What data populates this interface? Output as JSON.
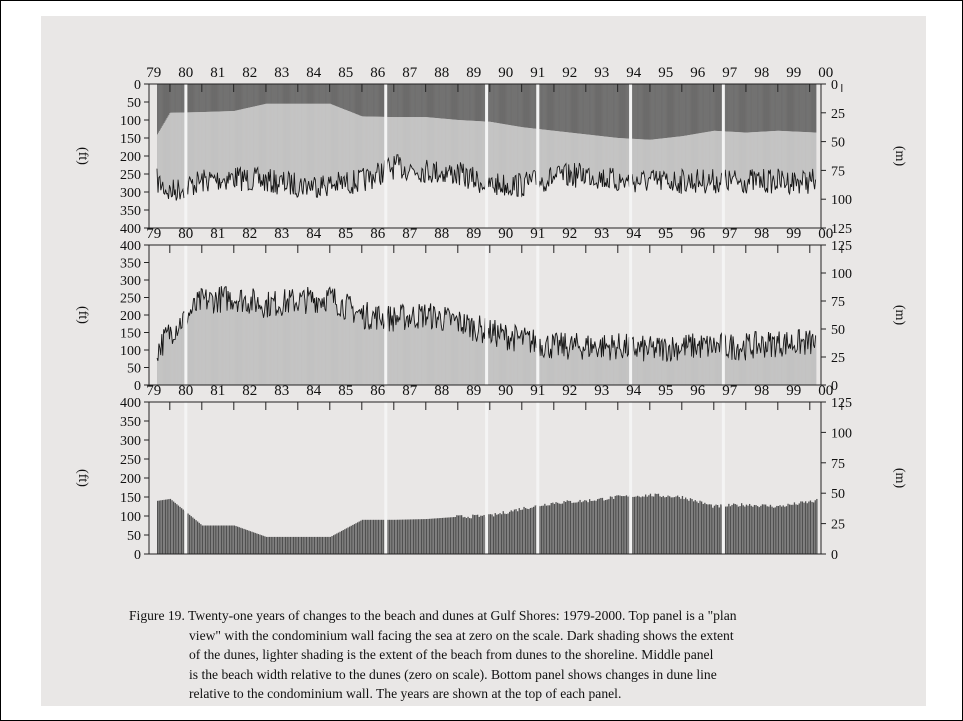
{
  "years": [
    "79",
    "80",
    "81",
    "82",
    "83",
    "84",
    "85",
    "86",
    "87",
    "88",
    "89",
    "90",
    "91",
    "92",
    "93",
    "94",
    "95",
    "96",
    "97",
    "98",
    "99",
    "00"
  ],
  "axes": {
    "left_unit": "(ft)",
    "right_unit": "(m)",
    "ft_ticks": [
      "0",
      "50",
      "100",
      "150",
      "200",
      "250",
      "300",
      "350",
      "400"
    ],
    "m_ticks": [
      "0",
      "25",
      "50",
      "75",
      "100",
      "125"
    ]
  },
  "colors": {
    "dark_shading": "#4b4b4b",
    "light_shading": "#b8b8b8",
    "dune_bars": "#505050",
    "trace": "#151515",
    "background": "#e9e7e6"
  },
  "chart_data": [
    {
      "type": "area",
      "panel": "top",
      "description_visible": false,
      "ylabel": "(ft)",
      "y2label": "(m)",
      "ylim": [
        400,
        0
      ],
      "y2lim": [
        125,
        0
      ],
      "x": [
        1979.6,
        1980,
        1981,
        1982,
        1983,
        1984,
        1985,
        1986,
        1987,
        1988,
        1989,
        1990,
        1991,
        1992,
        1993,
        1994,
        1995,
        1996,
        1997,
        1998,
        1999,
        2000.2
      ],
      "dune_line_ft": [
        140,
        80,
        78,
        75,
        55,
        55,
        55,
        90,
        92,
        92,
        100,
        105,
        120,
        130,
        140,
        150,
        155,
        145,
        130,
        135,
        130,
        135
      ],
      "shoreline_ft": [
        270,
        300,
        270,
        260,
        270,
        280,
        280,
        270,
        230,
        240,
        250,
        280,
        280,
        260,
        250,
        270,
        270,
        270,
        270,
        270,
        270,
        270
      ]
    },
    {
      "type": "area",
      "panel": "middle",
      "ylabel": "(ft)",
      "y2label": "(m)",
      "ylim": [
        0,
        400
      ],
      "y2lim": [
        0,
        125
      ],
      "x": [
        1979.6,
        1980,
        1981,
        1982,
        1983,
        1984,
        1985,
        1986,
        1987,
        1988,
        1989,
        1990,
        1991,
        1992,
        1993,
        1994,
        1995,
        1996,
        1997,
        1998,
        1999,
        2000.2
      ],
      "beach_width_ft": [
        100,
        150,
        240,
        250,
        230,
        240,
        250,
        200,
        190,
        200,
        180,
        150,
        130,
        110,
        110,
        110,
        100,
        110,
        110,
        110,
        120,
        120
      ]
    },
    {
      "type": "bar",
      "panel": "bottom",
      "ylabel": "(ft)",
      "y2label": "(m)",
      "ylim": [
        0,
        400
      ],
      "y2lim": [
        0,
        125
      ],
      "x": [
        1979.6,
        1980,
        1981,
        1982,
        1983,
        1984,
        1985,
        1986,
        1987,
        1988,
        1989,
        1990,
        1991,
        1992,
        1993,
        1994,
        1995,
        1996,
        1997,
        1998,
        1999,
        2000.2
      ],
      "dune_distance_ft": [
        140,
        145,
        75,
        75,
        45,
        45,
        45,
        90,
        90,
        92,
        98,
        100,
        120,
        135,
        140,
        150,
        155,
        150,
        125,
        130,
        125,
        140
      ]
    }
  ],
  "caption": {
    "line1": "Figure 19.  Twenty-one years of changes to the beach and dunes at Gulf Shores: 1979-2000.  Top panel is a \"plan",
    "line2": "view\" with the condominium wall facing the sea at zero on the scale.  Dark shading shows the extent",
    "line3": "of the dunes, lighter shading is the extent of the beach from dunes to the shoreline.  Middle panel",
    "line4": "is the beach width relative to the dunes (zero on scale).  Bottom panel shows changes in dune line",
    "line5": "relative to the condominium wall.  The years are shown at the top of each panel."
  }
}
